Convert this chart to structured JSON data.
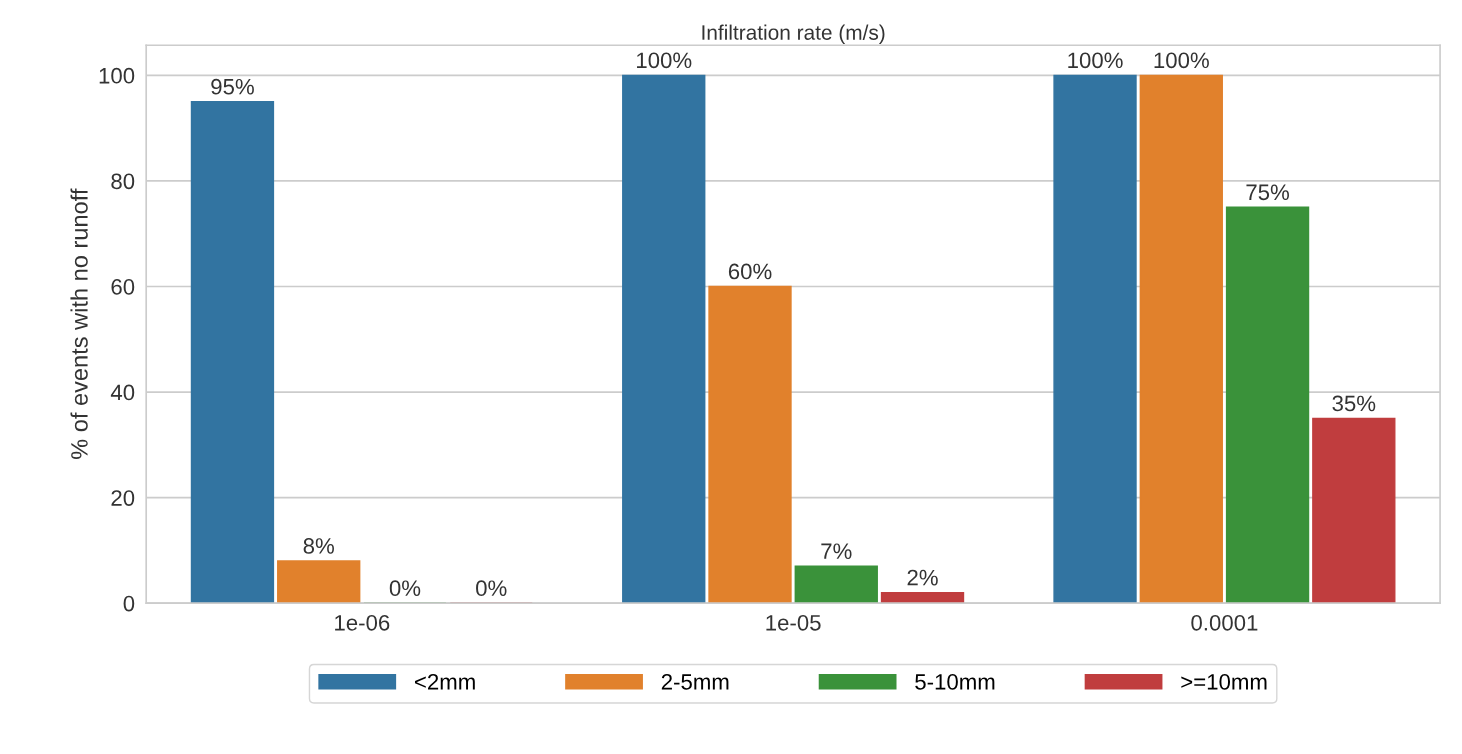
{
  "chart_data": {
    "type": "bar",
    "xlabel": "Infiltration rate (m/s)",
    "ylabel": "% of events with no runoff",
    "categories": [
      "1e-06",
      "1e-05",
      "0.0001"
    ],
    "series": [
      {
        "name": "<2mm",
        "color": "#3274a1",
        "values": [
          95,
          100,
          100
        ],
        "value_labels": [
          "95%",
          "100%",
          "100%"
        ]
      },
      {
        "name": "2-5mm",
        "color": "#e1812c",
        "values": [
          8,
          60,
          100
        ],
        "value_labels": [
          "8%",
          "60%",
          "100%"
        ]
      },
      {
        "name": "5-10mm",
        "color": "#3a923a",
        "values": [
          0,
          7,
          75
        ],
        "value_labels": [
          "0%",
          "7%",
          "75%"
        ]
      },
      {
        "name": ">=10mm",
        "color": "#c03d3e",
        "values": [
          0,
          2,
          35
        ],
        "value_labels": [
          "0%",
          "2%",
          "35%"
        ]
      }
    ],
    "ylim": [
      0,
      105.7
    ],
    "yticks": [
      0,
      20,
      40,
      60,
      80,
      100
    ],
    "grid": "y",
    "legend": "bottom"
  }
}
